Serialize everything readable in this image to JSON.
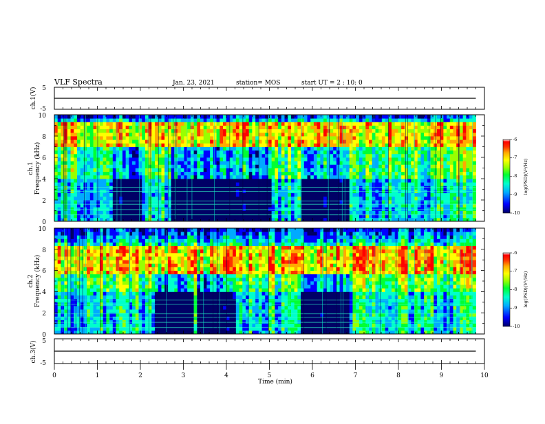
{
  "header": {
    "title": "VLF Spectra",
    "date": "Jan. 23, 2021",
    "station": "station= MOS",
    "start_ut": "start UT =  2 : 10: 0"
  },
  "colorbar_colors": [
    "#000066",
    "#0000ff",
    "#00aaff",
    "#00ffcc",
    "#00ff33",
    "#99ff00",
    "#ffff00",
    "#ffaa00",
    "#ff3300",
    "#ff0000",
    "#ffffff"
  ],
  "chart_data": [
    {
      "id": "ch1-waveform",
      "type": "line",
      "ylabel": "ch.1(V)",
      "xlim": [
        0,
        10
      ],
      "ylim": [
        -5,
        5
      ],
      "yticks": [
        "5",
        "-5"
      ],
      "x": [
        0,
        9.8
      ],
      "y": [
        0,
        0
      ]
    },
    {
      "id": "ch1-spectrogram",
      "type": "heatmap",
      "ylabel_channel": "ch.1",
      "ylabel": "Frequency (kHz)",
      "xlim": [
        0,
        10
      ],
      "ylim": [
        0,
        10
      ],
      "yticks": [
        "0",
        "2",
        "4",
        "6",
        "8",
        "10"
      ],
      "data_extent_min": 9.8,
      "colorbar": {
        "label": "log(PSD)(V²/Hz)",
        "range": [
          -10,
          -6
        ],
        "ticks": [
          "-6",
          "-7",
          "-8",
          "-9",
          "-10"
        ]
      },
      "intense_band_khz": [
        7.0,
        9.0
      ],
      "low_band_khz": [
        0,
        4
      ],
      "dark_intervals_min": [
        [
          1.3,
          2.0
        ],
        [
          2.7,
          3.8
        ],
        [
          3.8,
          5.0
        ],
        [
          5.7,
          6.8
        ]
      ]
    },
    {
      "id": "ch2-spectrogram",
      "type": "heatmap",
      "ylabel_channel": "ch.2",
      "ylabel": "Frequency (kHz)",
      "xlim": [
        0,
        10
      ],
      "ylim": [
        0,
        10
      ],
      "yticks": [
        "0",
        "2",
        "4",
        "6",
        "8",
        "10"
      ],
      "data_extent_min": 9.8,
      "colorbar": {
        "label": "log(PSD)(V²/Hz)",
        "range": [
          -10,
          -6
        ],
        "ticks": [
          "-6",
          "-7",
          "-8",
          "-9",
          "-10"
        ]
      },
      "intense_band_khz": [
        5.5,
        8.0
      ],
      "low_band_khz": [
        0,
        4
      ],
      "dark_intervals_min": [
        [
          2.3,
          3.2
        ],
        [
          3.3,
          4.2
        ],
        [
          5.7,
          6.8
        ]
      ]
    },
    {
      "id": "ch3-waveform",
      "type": "line",
      "ylabel": "ch.3(V)",
      "xlim": [
        0,
        10
      ],
      "ylim": [
        -5,
        5
      ],
      "yticks": [
        "5",
        "-5"
      ],
      "x": [
        0,
        9.8
      ],
      "y": [
        0,
        0
      ]
    }
  ],
  "xaxis": {
    "label": "Time (min)",
    "ticks": [
      "0",
      "1",
      "2",
      "3",
      "4",
      "5",
      "6",
      "7",
      "8",
      "9",
      "10"
    ]
  }
}
